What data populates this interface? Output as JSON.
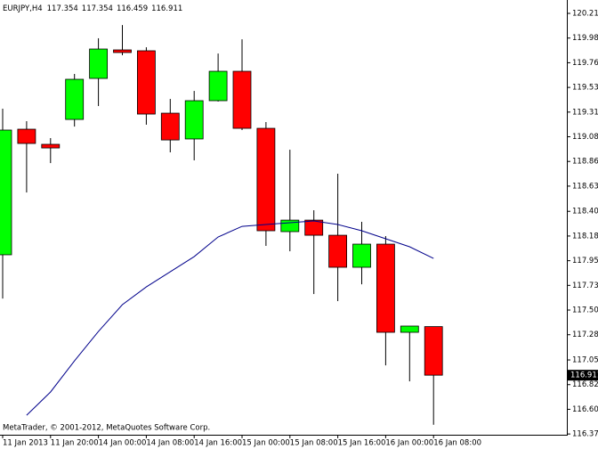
{
  "chart_data": {
    "type": "candlestick",
    "title": "EURJPY,H4",
    "watermark": "MetaTrader, © 2001-2012, MetaQuotes Software Corp.",
    "categories": [
      "11 Jan 2013",
      null,
      "11 Jan 20:00",
      null,
      "14 Jan 00:00",
      null,
      "14 Jan 08:00",
      null,
      "14 Jan 16:00",
      null,
      "15 Jan 00:00",
      null,
      "15 Jan 08:00",
      null,
      "15 Jan 16:00",
      null,
      "16 Jan 00:00",
      null,
      "16 Jan 08:00"
    ],
    "open": [
      118.009,
      119.154,
      119.016,
      119.243,
      119.617,
      119.877,
      119.869,
      119.3,
      119.065,
      119.414,
      119.682,
      119.162,
      118.22,
      118.325,
      118.187,
      117.895,
      118.106,
      117.302,
      117.354
    ],
    "high": [
      119.341,
      119.227,
      119.073,
      119.658,
      119.983,
      120.104,
      119.901,
      119.43,
      119.503,
      119.844,
      119.974,
      119.219,
      118.967,
      118.415,
      118.748,
      118.309,
      118.179,
      117.359,
      117.354
    ],
    "low": [
      117.61,
      118.577,
      118.845,
      119.178,
      119.365,
      119.828,
      119.195,
      118.943,
      118.87,
      119.406,
      119.146,
      118.09,
      118.041,
      117.651,
      117.586,
      117.74,
      117.001,
      116.855,
      116.459
    ],
    "close": [
      119.146,
      119.024,
      118.983,
      119.609,
      119.885,
      119.853,
      119.292,
      119.056,
      119.414,
      119.682,
      119.162,
      118.228,
      118.325,
      118.187,
      117.895,
      118.106,
      117.302,
      117.359,
      116.911
    ],
    "up_color": "#00ff00",
    "down_color": "#ff0000",
    "overlay": {
      "type": "line",
      "color": "#00008b",
      "values": [
        null,
        116.546,
        116.758,
        117.042,
        117.31,
        117.554,
        117.716,
        117.854,
        117.992,
        118.171,
        118.268,
        118.285,
        118.301,
        118.317,
        118.285,
        118.228,
        118.155,
        118.082,
        117.976
      ]
    },
    "ylim": [
      116.368,
      120.332
    ],
    "yticks": [
      {
        "value": 120.21,
        "label": "120.210"
      },
      119.985,
      {
        "value": 119.76,
        "label": "119.760"
      },
      119.535,
      {
        "value": 119.31,
        "label": "119.310"
      },
      119.085,
      {
        "value": 118.86,
        "label": "118.860"
      },
      118.635,
      118.405,
      {
        "value": 118.18,
        "label": "118.180"
      },
      117.955,
      {
        "value": 117.73,
        "label": "117.730"
      },
      117.505,
      {
        "value": 117.28,
        "label": "117.280"
      },
      {
        "value": 117.05,
        "label": "117.050"
      },
      116.825,
      {
        "value": 116.6,
        "label": "116.600"
      },
      116.375
    ]
  }
}
